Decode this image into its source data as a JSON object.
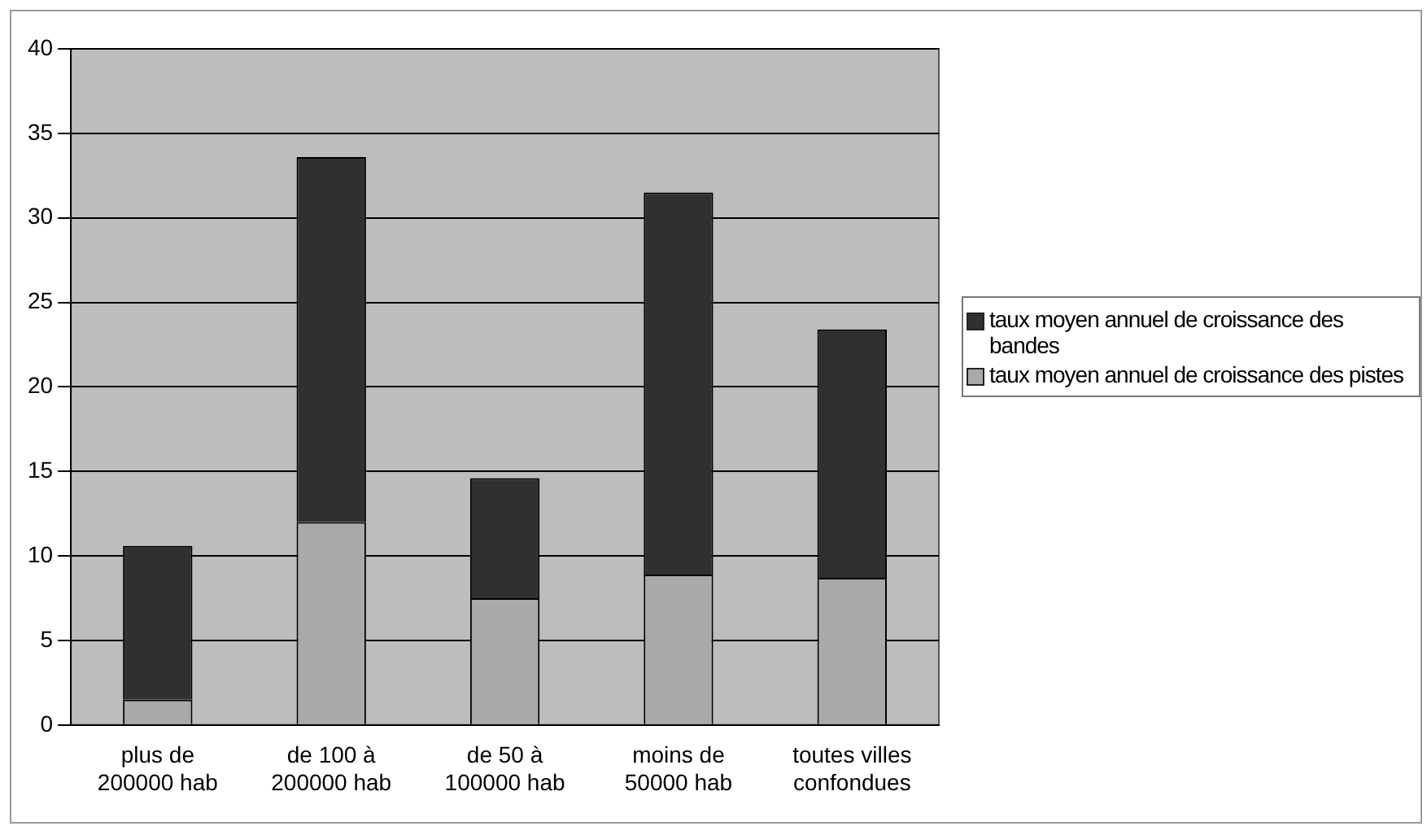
{
  "chart_data": {
    "type": "bar",
    "stacked": true,
    "categories": [
      "plus de 200000 hab",
      "de 100 à 200000 hab",
      "de 50 à 100000 hab",
      "moins de 50000 hab",
      "toutes villes confondues"
    ],
    "series": [
      {
        "name": "taux moyen annuel de croissance des pistes",
        "color": "#a9a9a9",
        "values": [
          1.5,
          12.0,
          7.5,
          8.9,
          8.7
        ]
      },
      {
        "name": "taux moyen annuel de croissance des bandes",
        "color": "#303030",
        "values": [
          9.1,
          21.6,
          7.1,
          22.6,
          14.7
        ]
      }
    ],
    "ylim": [
      0,
      40
    ],
    "yticks": [
      0,
      5,
      10,
      15,
      20,
      25,
      30,
      35,
      40
    ],
    "grid": "y",
    "legend": "right"
  }
}
